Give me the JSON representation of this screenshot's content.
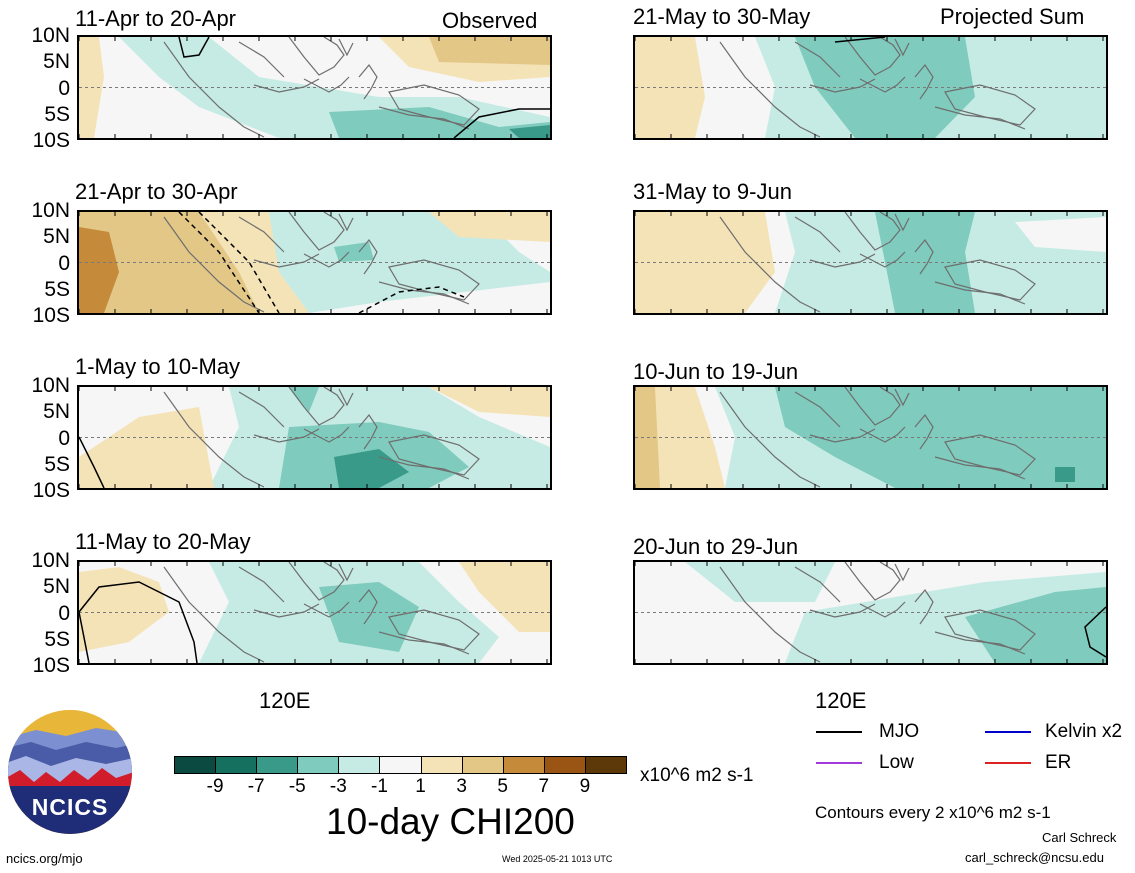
{
  "colors": {
    "neg9": "#0a4a40",
    "neg7": "#15705f",
    "neg5": "#3a9a8a",
    "neg3": "#7fcbbd",
    "neg1": "#c6ebe4",
    "zero": "#f6f6f6",
    "pos1": "#f5e3b8",
    "pos3": "#e2c787",
    "pos5": "#c58a3a",
    "pos7": "#9a5515",
    "pos9": "#5d3808",
    "land": "#6e6e6e",
    "equator": "#7a7a7a",
    "mjo": "#000000",
    "kelvin": "#0000cc",
    "low": "#a23bdc",
    "er": "#dd2222"
  },
  "column_headers": {
    "observed": "Observed",
    "projected": "Projected Sum"
  },
  "panels": [
    {
      "title": "11-Apr to 20-Apr"
    },
    {
      "title": "21-Apr to 30-Apr"
    },
    {
      "title": "1-May to 10-May"
    },
    {
      "title": "11-May to 20-May"
    },
    {
      "title": "21-May to 30-May"
    },
    {
      "title": "31-May to 9-Jun"
    },
    {
      "title": "10-Jun to 19-Jun"
    },
    {
      "title": "20-Jun to 29-Jun"
    }
  ],
  "lat_labels": [
    "10N",
    "5N",
    "0",
    "5S",
    "10S"
  ],
  "lon_label": "120E",
  "colorbar": {
    "tick_labels": [
      "-9",
      "-7",
      "-5",
      "-3",
      "-1",
      "1",
      "3",
      "5",
      "7",
      "9"
    ],
    "units": "x10^6 m2 s-1",
    "title": "10-day CHI200"
  },
  "legend": {
    "mjo": "MJO",
    "kelvin": "Kelvin x2",
    "low": "Low",
    "er": "ER",
    "contours": "Contours every 2 x10^6 m2 s-1"
  },
  "logo": {
    "text": "NCICS"
  },
  "footer": {
    "url": "ncics.org/mjo",
    "timestamp": "Wed 2025-05-21 1013 UTC",
    "author": "Carl Schreck",
    "email": "carl_schreck@ncsu.edu"
  }
}
